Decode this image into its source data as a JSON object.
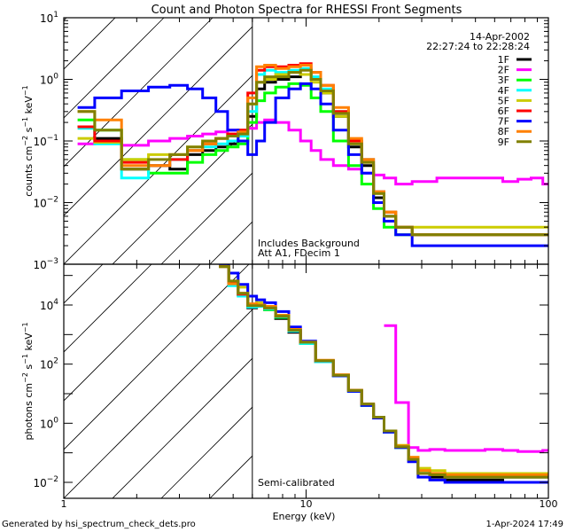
{
  "chart_data": [
    {
      "type": "line",
      "panel": "upper",
      "title": "Count and Photon Spectra for RHESSI Front Segments",
      "xlabel": "",
      "ylabel": "counts cm^-2 s^-1 keV^-1",
      "xscale": "log",
      "yscale": "log",
      "xlim": [
        1,
        100
      ],
      "ylim": [
        0.001,
        10
      ],
      "ytick_labels": [
        "10^1",
        "10^0",
        "10^-1",
        "10^-2",
        "10^-3"
      ],
      "ytick_values": [
        10,
        1,
        0.1,
        0.01,
        0.001
      ],
      "date_label": "14-Apr-2002",
      "time_label": "22:27:24 to 22:28:24",
      "annotations": [
        "Includes Background",
        "Att A1, FDecim 1"
      ],
      "threshold_line_kev": 6,
      "hatched_region": [
        1,
        6
      ],
      "legend_placement": "top-right",
      "energies": [
        1.2,
        1.5,
        2,
        2.5,
        3,
        3.5,
        4,
        4.5,
        5,
        5.5,
        6,
        6.5,
        7,
        8,
        9,
        10,
        11,
        12,
        14,
        16,
        18,
        20,
        22,
        25,
        30,
        40,
        50,
        60,
        70,
        80,
        90,
        100
      ],
      "series": [
        {
          "name": "1F",
          "color": "#000000",
          "values": [
            0.17,
            0.11,
            0.035,
            0.04,
            0.035,
            0.06,
            0.07,
            0.08,
            0.09,
            0.1,
            0.25,
            0.7,
            0.9,
            1.0,
            1.1,
            1.2,
            1.0,
            0.6,
            0.25,
            0.08,
            0.04,
            0.012,
            0.006,
            0.004,
            0.003,
            0.003,
            0.003,
            0.003,
            0.003,
            0.003,
            0.003,
            0.003
          ]
        },
        {
          "name": "2F",
          "color": "#ff00ff",
          "values": [
            0.09,
            0.1,
            0.085,
            0.1,
            0.11,
            0.12,
            0.13,
            0.14,
            0.15,
            0.15,
            0.16,
            0.2,
            0.22,
            0.2,
            0.15,
            0.1,
            0.07,
            0.05,
            0.04,
            0.035,
            0.03,
            0.028,
            0.025,
            0.02,
            0.022,
            0.025,
            0.025,
            0.025,
            0.022,
            0.024,
            0.025,
            0.02
          ]
        },
        {
          "name": "3F",
          "color": "#00ff00",
          "values": [
            0.22,
            0.15,
            0.05,
            0.03,
            0.03,
            0.045,
            0.06,
            0.07,
            0.08,
            0.09,
            0.2,
            0.45,
            0.6,
            0.75,
            0.85,
            0.8,
            0.5,
            0.3,
            0.1,
            0.04,
            0.02,
            0.008,
            0.004,
            0.003,
            0.003,
            0.003,
            0.003,
            0.003,
            0.003,
            0.003,
            0.003,
            0.003
          ]
        },
        {
          "name": "4F",
          "color": "#00ffff",
          "values": [
            0.16,
            0.09,
            0.025,
            0.04,
            0.05,
            0.07,
            0.08,
            0.09,
            0.1,
            0.12,
            0.3,
            1.2,
            1.4,
            1.3,
            1.4,
            1.5,
            1.1,
            0.7,
            0.3,
            0.1,
            0.05,
            0.015,
            0.007,
            0.004,
            0.003,
            0.003,
            0.003,
            0.003,
            0.003,
            0.003,
            0.003,
            0.003
          ]
        },
        {
          "name": "5F",
          "color": "#cccc00",
          "values": [
            0.11,
            0.095,
            0.05,
            0.06,
            0.06,
            0.08,
            0.1,
            0.11,
            0.13,
            0.15,
            0.4,
            0.9,
            1.0,
            1.2,
            1.3,
            1.2,
            0.9,
            0.6,
            0.25,
            0.09,
            0.045,
            0.014,
            0.007,
            0.004,
            0.004,
            0.004,
            0.004,
            0.004,
            0.004,
            0.004,
            0.004,
            0.004
          ]
        },
        {
          "name": "6F",
          "color": "#ff0000",
          "values": [
            0.17,
            0.1,
            0.045,
            0.04,
            0.05,
            0.07,
            0.09,
            0.11,
            0.13,
            0.15,
            0.6,
            1.4,
            1.6,
            1.6,
            1.7,
            1.8,
            1.3,
            0.8,
            0.3,
            0.1,
            0.05,
            0.015,
            0.007,
            0.004,
            0.003,
            0.003,
            0.003,
            0.003,
            0.003,
            0.003,
            0.003,
            0.003
          ]
        },
        {
          "name": "7F",
          "color": "#0000ff",
          "values": [
            0.35,
            0.5,
            0.65,
            0.75,
            0.8,
            0.7,
            0.5,
            0.3,
            0.15,
            0.1,
            0.06,
            0.1,
            0.2,
            0.5,
            0.7,
            0.85,
            0.7,
            0.4,
            0.15,
            0.06,
            0.03,
            0.01,
            0.005,
            0.003,
            0.002,
            0.002,
            0.002,
            0.002,
            0.002,
            0.002,
            0.002,
            0.002
          ]
        },
        {
          "name": "8F",
          "color": "#ff8000",
          "values": [
            0.3,
            0.22,
            0.04,
            0.04,
            0.06,
            0.07,
            0.09,
            0.11,
            0.12,
            0.14,
            0.5,
            1.6,
            1.7,
            1.5,
            1.6,
            1.7,
            1.3,
            0.8,
            0.35,
            0.11,
            0.05,
            0.015,
            0.007,
            0.004,
            0.003,
            0.003,
            0.003,
            0.003,
            0.003,
            0.003,
            0.003,
            0.003
          ]
        },
        {
          "name": "9F",
          "color": "#808000",
          "values": [
            0.3,
            0.15,
            0.035,
            0.05,
            0.06,
            0.08,
            0.1,
            0.11,
            0.12,
            0.13,
            0.4,
            0.9,
            1.1,
            1.1,
            1.3,
            1.4,
            1.0,
            0.65,
            0.28,
            0.09,
            0.045,
            0.014,
            0.006,
            0.004,
            0.003,
            0.003,
            0.003,
            0.003,
            0.003,
            0.003,
            0.003,
            0.003
          ]
        }
      ]
    },
    {
      "type": "line",
      "panel": "lower",
      "xlabel": "Energy (keV)",
      "ylabel": "photons cm^-2 s^-1 keV^-1",
      "xscale": "log",
      "yscale": "log",
      "xlim": [
        1,
        100
      ],
      "ylim": [
        0.005,
        250000
      ],
      "xtick_labels": [
        "1",
        "10",
        "100"
      ],
      "xtick_values": [
        1,
        10,
        100
      ],
      "ytick_labels": [
        "10^4",
        "10^2",
        "10^0",
        "10^-2"
      ],
      "ytick_values": [
        10000,
        100,
        1,
        0.01
      ],
      "annotations": [
        "Semi-calibrated"
      ],
      "threshold_line_kev": 6,
      "hatched_region": [
        1,
        6
      ],
      "energies": [
        4.6,
        5,
        5.5,
        6,
        6.5,
        7,
        8,
        9,
        10,
        12,
        14,
        16,
        18,
        20,
        22,
        25,
        28,
        30,
        35,
        40,
        50,
        60,
        70,
        80,
        90,
        100
      ],
      "series": [
        {
          "name": "1F",
          "color": "#000000",
          "values": [
            200000,
            50000,
            22000,
            8000,
            9000,
            7000,
            3500,
            1200,
            500,
            120,
            40,
            12,
            4,
            1.5,
            0.5,
            0.15,
            0.06,
            0.02,
            0.015,
            0.012,
            0.012,
            0.012,
            0.01,
            0.01,
            0.01,
            0.01
          ]
        },
        {
          "name": "2F",
          "color": "#ff00ff",
          "values": [
            null,
            null,
            null,
            null,
            null,
            null,
            null,
            null,
            null,
            null,
            null,
            null,
            null,
            null,
            2000,
            5,
            0.15,
            0.12,
            0.13,
            0.12,
            0.12,
            0.13,
            0.12,
            0.11,
            0.11,
            0.12
          ]
        },
        {
          "name": "3F",
          "color": "#00ff00",
          "values": [
            200000,
            55000,
            22000,
            9000,
            9000,
            7000,
            3800,
            1300,
            500,
            120,
            40,
            12,
            4,
            1.5,
            0.5,
            0.15,
            0.06,
            0.025,
            0.02,
            0.015,
            0.015,
            0.015,
            0.015,
            0.015,
            0.015,
            0.015
          ]
        },
        {
          "name": "4F",
          "color": "#00ffff",
          "values": [
            200000,
            45000,
            20000,
            8500,
            9000,
            7500,
            4000,
            1300,
            500,
            120,
            40,
            12,
            4,
            1.5,
            0.5,
            0.15,
            0.06,
            0.025,
            0.02,
            0.015,
            0.015,
            0.015,
            0.015,
            0.015,
            0.015,
            0.015
          ]
        },
        {
          "name": "5F",
          "color": "#cccc00",
          "values": [
            200000,
            60000,
            40000,
            20000,
            12000,
            9000,
            4500,
            1400,
            550,
            130,
            42,
            13,
            4.5,
            1.6,
            0.55,
            0.18,
            0.07,
            0.03,
            0.025,
            0.02,
            0.02,
            0.02,
            0.02,
            0.02,
            0.02,
            0.02
          ]
        },
        {
          "name": "6F",
          "color": "#ff0000",
          "values": [
            200000,
            55000,
            23000,
            10000,
            10000,
            8000,
            4200,
            1400,
            550,
            130,
            42,
            13,
            4.5,
            1.6,
            0.55,
            0.16,
            0.06,
            0.02,
            0.02,
            0.015,
            0.015,
            0.015,
            0.015,
            0.015,
            0.015,
            0.015
          ]
        },
        {
          "name": "7F",
          "color": "#0000ff",
          "values": [
            250000,
            120000,
            50000,
            20000,
            15000,
            12000,
            6000,
            1800,
            600,
            130,
            40,
            12,
            4,
            1.5,
            0.5,
            0.15,
            0.05,
            0.015,
            0.012,
            0.01,
            0.01,
            0.01,
            0.01,
            0.01,
            0.01,
            0.01
          ]
        },
        {
          "name": "8F",
          "color": "#ff8000",
          "values": [
            200000,
            52000,
            25000,
            11000,
            10000,
            9000,
            4500,
            1500,
            560,
            135,
            44,
            13,
            4.5,
            1.6,
            0.55,
            0.17,
            0.07,
            0.025,
            0.02,
            0.018,
            0.018,
            0.018,
            0.018,
            0.018,
            0.018,
            0.018
          ]
        },
        {
          "name": "9F",
          "color": "#808000",
          "values": [
            200000,
            65000,
            25000,
            9500,
            9500,
            8000,
            4200,
            1400,
            550,
            130,
            42,
            13,
            4.5,
            1.6,
            0.55,
            0.16,
            0.06,
            0.02,
            0.018,
            0.015,
            0.015,
            0.015,
            0.015,
            0.015,
            0.015,
            0.015
          ]
        }
      ]
    }
  ],
  "footer": {
    "generated_by": "Generated by hsi_spectrum_check_dets.pro",
    "timestamp": "1-Apr-2024 17:49"
  }
}
